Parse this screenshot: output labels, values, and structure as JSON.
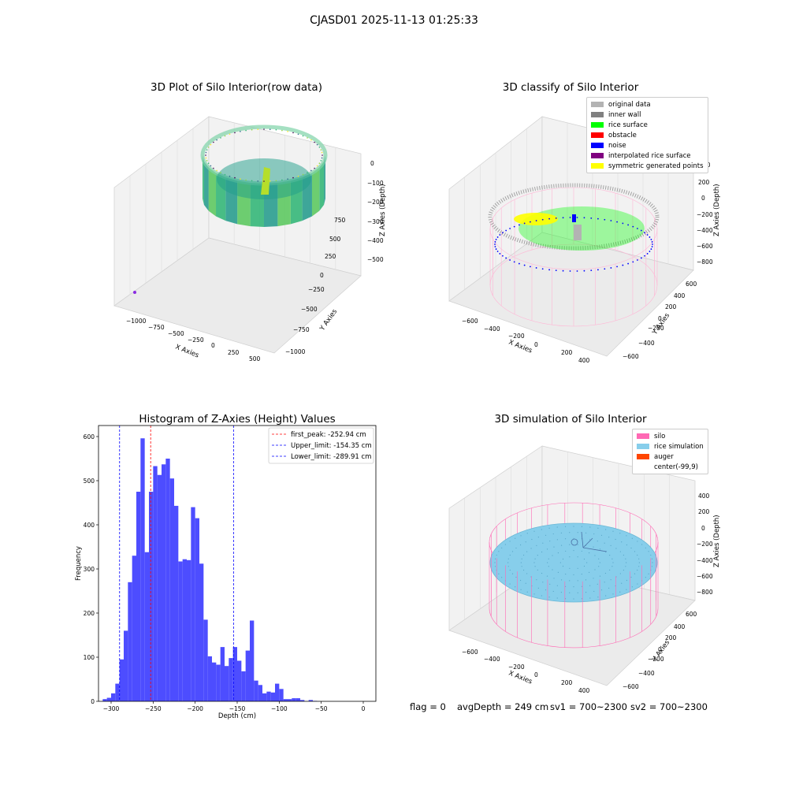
{
  "suptitle": "CJASD01 2025-11-13 01:25:33",
  "footer": {
    "flag": "flag = 0",
    "avg_depth": "avgDepth = 249 cm",
    "sv1": "sv1 = 700~2300",
    "sv2": "sv2 = 700~2300"
  },
  "chart_data": [
    {
      "type": "scatter",
      "title": "3D Plot of Silo Interior(row data)",
      "xlabel": "X Axies",
      "ylabel": "Y Axies",
      "zlabel": "Z Axies (Depth)",
      "x_ticks": [
        "−1000",
        "−750",
        "−500",
        "−250",
        "0",
        "250",
        "500"
      ],
      "y_ticks": [
        "−1000",
        "−750",
        "−500",
        "−250",
        "0",
        "250",
        "500",
        "750"
      ],
      "z_ticks": [
        "0",
        "−100",
        "−200",
        "−300",
        "−400",
        "−500"
      ],
      "xlim": [
        -1100,
        550
      ],
      "ylim": [
        -1100,
        800
      ],
      "zlim": [
        -550,
        20
      ],
      "colormap": "viridis"
    },
    {
      "type": "scatter",
      "title": "3D classify of Silo Interior",
      "xlabel": "X Axies",
      "ylabel": "Y Axies",
      "zlabel": "Z Axies (Depth)",
      "x_ticks": [
        "−600",
        "−400",
        "−200",
        "0",
        "200",
        "400"
      ],
      "y_ticks": [
        "−600",
        "−400",
        "−200",
        "0",
        "200",
        "400",
        "600"
      ],
      "z_ticks": [
        "200",
        "0",
        "−200",
        "−400",
        "−600",
        "−800"
      ],
      "visible_top_tick_fragment": "00",
      "legend": [
        {
          "label": "original data",
          "color": "#b3b3b3"
        },
        {
          "label": "inner wall",
          "color": "#808080"
        },
        {
          "label": "rice surface",
          "color": "#00ff00"
        },
        {
          "label": "obstacle",
          "color": "#ff0000"
        },
        {
          "label": "noise",
          "color": "#0000ff"
        },
        {
          "label": "interpolated rice surface",
          "color": "#800080"
        },
        {
          "label": "symmetric generated points",
          "color": "#ffff00"
        }
      ],
      "legend_position": "top-right"
    },
    {
      "type": "bar",
      "title": "Histogram of Z-Axies (Height) Values",
      "xlabel": "Depth (cm)",
      "ylabel": "Frequency",
      "bin_start": -310,
      "bin_width": 5,
      "values": [
        5,
        8,
        18,
        40,
        95,
        160,
        270,
        330,
        475,
        596,
        338,
        475,
        533,
        513,
        537,
        550,
        505,
        443,
        317,
        322,
        320,
        440,
        415,
        312,
        185,
        102,
        88,
        83,
        123,
        80,
        98,
        123,
        92,
        68,
        115,
        183,
        47,
        37,
        18,
        22,
        20,
        40,
        28,
        5,
        5,
        7,
        7,
        3,
        0,
        3,
        1
      ],
      "xlim": [
        -315,
        15
      ],
      "ylim": [
        0,
        625
      ],
      "x_ticks": [
        -300,
        -250,
        -200,
        -150,
        -100,
        -50,
        0
      ],
      "y_ticks": [
        0,
        100,
        200,
        300,
        400,
        500,
        600
      ],
      "bar_color": "#4d4dff",
      "lines": [
        {
          "label": "first_peak: -252.94 cm",
          "x": -252.94,
          "color": "#ff0000"
        },
        {
          "label": "Upper_limit: -154.35 cm",
          "x": -154.35,
          "color": "#0000ff"
        },
        {
          "label": "Lower_limit: -289.91 cm",
          "x": -289.91,
          "color": "#0000ff"
        }
      ],
      "legend_position": "top-right"
    },
    {
      "type": "scatter",
      "title": "3D simulation of Silo Interior",
      "xlabel": "X Axies",
      "ylabel": "Y Axies",
      "zlabel": "Z Axies (Depth)",
      "x_ticks": [
        "−600",
        "−400",
        "−200",
        "0",
        "200",
        "400"
      ],
      "y_ticks": [
        "−600",
        "−400",
        "−200",
        "0",
        "200",
        "400",
        "600"
      ],
      "z_ticks": [
        "400",
        "200",
        "0",
        "−200",
        "−400",
        "−600",
        "−800"
      ],
      "legend": [
        {
          "label": "silo",
          "color": "#ff69b4"
        },
        {
          "label": "rice simulation",
          "color": "#87ceeb"
        },
        {
          "label": "auger",
          "color": "#ff4500"
        },
        {
          "label": "center(-99,9)",
          "color": ""
        }
      ],
      "legend_position": "top-right"
    }
  ]
}
